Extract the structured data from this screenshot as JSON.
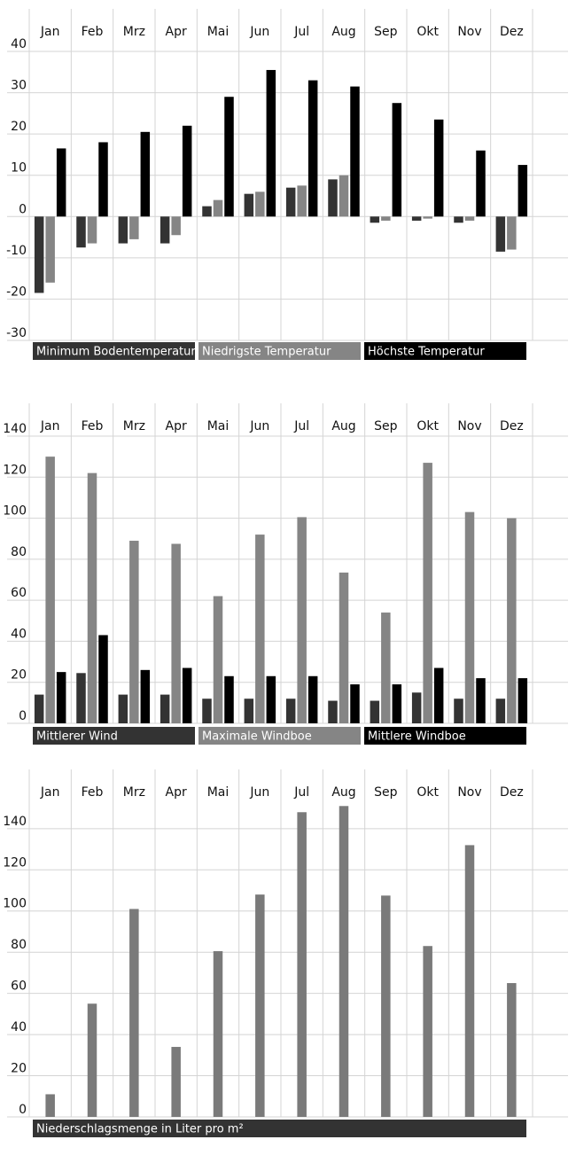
{
  "chart_data": [
    {
      "type": "bar",
      "categories": [
        "Jan",
        "Feb",
        "Mrz",
        "Apr",
        "Mai",
        "Jun",
        "Jul",
        "Aug",
        "Sep",
        "Okt",
        "Nov",
        "Dez"
      ],
      "series": [
        {
          "name": "Minimum Bodentemperatur",
          "color": "#333333",
          "values": [
            -18.5,
            -7.5,
            -6.5,
            -6.5,
            2.5,
            5.5,
            7,
            9,
            -1.5,
            -1,
            -1.5,
            -8.5
          ]
        },
        {
          "name": "Niedrigste Temperatur",
          "color": "#858585",
          "values": [
            -16,
            -6.5,
            -5.5,
            -4.5,
            4,
            6,
            7.5,
            10,
            -1,
            -0.5,
            -1,
            -8
          ]
        },
        {
          "name": "Höchste Temperatur",
          "color": "#000000",
          "values": [
            16.5,
            18,
            20.5,
            22,
            29,
            35.5,
            33,
            31.5,
            27.5,
            23.5,
            16,
            12.5
          ]
        }
      ],
      "ylim": [
        -30,
        40
      ],
      "yticks": [
        -30,
        -20,
        -10,
        0,
        10,
        20,
        30,
        40
      ],
      "grid": true,
      "legend": "bottom"
    },
    {
      "type": "bar",
      "categories": [
        "Jan",
        "Feb",
        "Mrz",
        "Apr",
        "Mai",
        "Jun",
        "Jul",
        "Aug",
        "Sep",
        "Okt",
        "Nov",
        "Dez"
      ],
      "series": [
        {
          "name": "Mittlerer Wind",
          "color": "#333333",
          "values": [
            14,
            24.5,
            14,
            14,
            12,
            12,
            12,
            11,
            11,
            15,
            12,
            12
          ]
        },
        {
          "name": "Maximale Windboe",
          "color": "#858585",
          "values": [
            130,
            122,
            89,
            87.5,
            62,
            92,
            100.5,
            73.5,
            54,
            127,
            103,
            100
          ]
        },
        {
          "name": "Mittlere Windboe",
          "color": "#000000",
          "values": [
            25,
            43,
            26,
            27,
            23,
            23,
            23,
            19,
            19,
            27,
            22,
            22
          ]
        }
      ],
      "ylim": [
        0,
        140
      ],
      "yticks": [
        0,
        20,
        40,
        60,
        80,
        100,
        120,
        140
      ],
      "grid": true,
      "legend": "bottom"
    },
    {
      "type": "bar",
      "categories": [
        "Jan",
        "Feb",
        "Mrz",
        "Apr",
        "Mai",
        "Jun",
        "Jul",
        "Aug",
        "Sep",
        "Okt",
        "Nov",
        "Dez"
      ],
      "series": [
        {
          "name": "Niederschlagsmenge in Liter pro m²",
          "color": "#7a7a7a",
          "legend_color": "#333333",
          "values": [
            11,
            55,
            101,
            34,
            80.5,
            108,
            148,
            151,
            107.5,
            83,
            132,
            65
          ]
        }
      ],
      "ylim": [
        0,
        155
      ],
      "yticks": [
        0,
        20,
        40,
        60,
        80,
        100,
        120,
        140
      ],
      "grid": true,
      "legend": "bottom"
    }
  ]
}
